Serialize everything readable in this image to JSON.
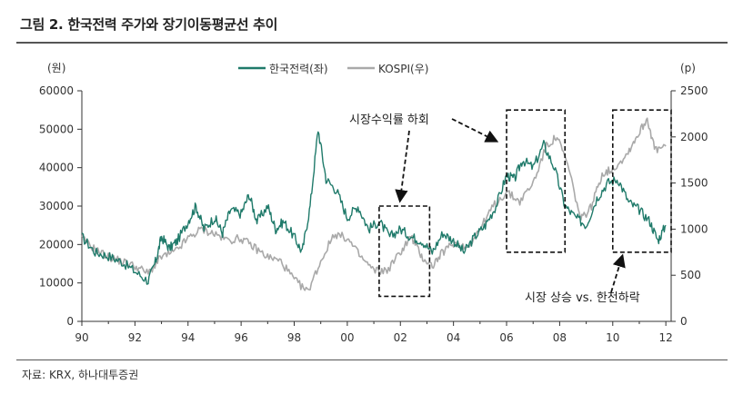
{
  "figure_title": "그림 2. 한국전력 주가와 장기이동평균선 추이",
  "source": "자료: KRX, 하나대투증권",
  "colors": {
    "kepco": "#1f7a6a",
    "kospi": "#a9a9a9",
    "axis": "#333333",
    "box": "#111111"
  },
  "chart_data": {
    "type": "line",
    "left_unit": "(원)",
    "right_unit": "(p)",
    "x_ticks": [
      "90",
      "92",
      "94",
      "96",
      "98",
      "00",
      "02",
      "04",
      "06",
      "08",
      "10",
      "12"
    ],
    "xlim": [
      1990,
      2012.2
    ],
    "y_left": {
      "lim": [
        0,
        60000
      ],
      "ticks": [
        "0",
        "10000",
        "20000",
        "30000",
        "40000",
        "50000",
        "60000"
      ]
    },
    "y_right": {
      "lim": [
        0,
        2500
      ],
      "ticks": [
        "0",
        "500",
        "1000",
        "1500",
        "2000",
        "2500"
      ]
    },
    "legend_position": "top-center",
    "series": [
      {
        "name": "한국전력(좌)",
        "axis": "left",
        "color": "#1f7a6a",
        "points": [
          [
            1990.0,
            22000
          ],
          [
            1990.5,
            18000
          ],
          [
            1991.0,
            17000
          ],
          [
            1991.5,
            15500
          ],
          [
            1992.0,
            13000
          ],
          [
            1992.5,
            10500
          ],
          [
            1992.8,
            16000
          ],
          [
            1993.0,
            22000
          ],
          [
            1993.3,
            19000
          ],
          [
            1993.6,
            21000
          ],
          [
            1994.0,
            26000
          ],
          [
            1994.3,
            30000
          ],
          [
            1994.6,
            24000
          ],
          [
            1995.0,
            27000
          ],
          [
            1995.3,
            23000
          ],
          [
            1995.6,
            29000
          ],
          [
            1996.0,
            28000
          ],
          [
            1996.3,
            33000
          ],
          [
            1996.6,
            26000
          ],
          [
            1997.0,
            30000
          ],
          [
            1997.3,
            24000
          ],
          [
            1997.6,
            26000
          ],
          [
            1998.0,
            22000
          ],
          [
            1998.3,
            18000
          ],
          [
            1998.6,
            30000
          ],
          [
            1998.9,
            50000
          ],
          [
            1999.2,
            37000
          ],
          [
            1999.6,
            34000
          ],
          [
            2000.0,
            27000
          ],
          [
            2000.4,
            30000
          ],
          [
            2000.8,
            24000
          ],
          [
            2001.2,
            26000
          ],
          [
            2001.6,
            22000
          ],
          [
            2002.0,
            24000
          ],
          [
            2002.4,
            22000
          ],
          [
            2002.8,
            21000
          ],
          [
            2003.2,
            18000
          ],
          [
            2003.6,
            23000
          ],
          [
            2004.0,
            21000
          ],
          [
            2004.4,
            18000
          ],
          [
            2004.8,
            22000
          ],
          [
            2005.2,
            25000
          ],
          [
            2005.6,
            30000
          ],
          [
            2006.0,
            38000
          ],
          [
            2006.3,
            37000
          ],
          [
            2006.6,
            42000
          ],
          [
            2007.0,
            40000
          ],
          [
            2007.4,
            46000
          ],
          [
            2007.8,
            40000
          ],
          [
            2008.2,
            30000
          ],
          [
            2008.6,
            27000
          ],
          [
            2009.0,
            25000
          ],
          [
            2009.4,
            32000
          ],
          [
            2009.8,
            36000
          ],
          [
            2010.2,
            37000
          ],
          [
            2010.6,
            31000
          ],
          [
            2011.0,
            29000
          ],
          [
            2011.4,
            26000
          ],
          [
            2011.7,
            21000
          ],
          [
            2012.0,
            25000
          ]
        ]
      },
      {
        "name": "KOSPI(우)",
        "axis": "right",
        "color": "#a9a9a9",
        "points": [
          [
            1990.0,
            900
          ],
          [
            1990.5,
            780
          ],
          [
            1991.0,
            700
          ],
          [
            1991.5,
            650
          ],
          [
            1992.0,
            600
          ],
          [
            1992.5,
            520
          ],
          [
            1993.0,
            700
          ],
          [
            1993.5,
            750
          ],
          [
            1994.0,
            900
          ],
          [
            1994.5,
            1000
          ],
          [
            1995.0,
            950
          ],
          [
            1995.5,
            880
          ],
          [
            1996.0,
            900
          ],
          [
            1996.5,
            800
          ],
          [
            1997.0,
            700
          ],
          [
            1997.5,
            650
          ],
          [
            1998.0,
            450
          ],
          [
            1998.5,
            320
          ],
          [
            1999.0,
            650
          ],
          [
            1999.5,
            950
          ],
          [
            2000.0,
            900
          ],
          [
            2000.5,
            700
          ],
          [
            2001.0,
            550
          ],
          [
            2001.5,
            550
          ],
          [
            2002.0,
            750
          ],
          [
            2002.4,
            920
          ],
          [
            2002.8,
            700
          ],
          [
            2003.2,
            600
          ],
          [
            2003.6,
            750
          ],
          [
            2004.0,
            850
          ],
          [
            2004.5,
            800
          ],
          [
            2005.0,
            1000
          ],
          [
            2005.5,
            1250
          ],
          [
            2006.0,
            1400
          ],
          [
            2006.5,
            1300
          ],
          [
            2007.0,
            1500
          ],
          [
            2007.5,
            1900
          ],
          [
            2007.9,
            2000
          ],
          [
            2008.3,
            1700
          ],
          [
            2008.8,
            1100
          ],
          [
            2009.2,
            1250
          ],
          [
            2009.6,
            1600
          ],
          [
            2010.0,
            1650
          ],
          [
            2010.5,
            1800
          ],
          [
            2010.9,
            2000
          ],
          [
            2011.3,
            2200
          ],
          [
            2011.6,
            1850
          ],
          [
            2012.0,
            1900
          ]
        ]
      }
    ],
    "annotations": [
      {
        "text": "시장수익률 하회"
      },
      {
        "text": "시장 상승 vs. 한전하락"
      }
    ]
  }
}
